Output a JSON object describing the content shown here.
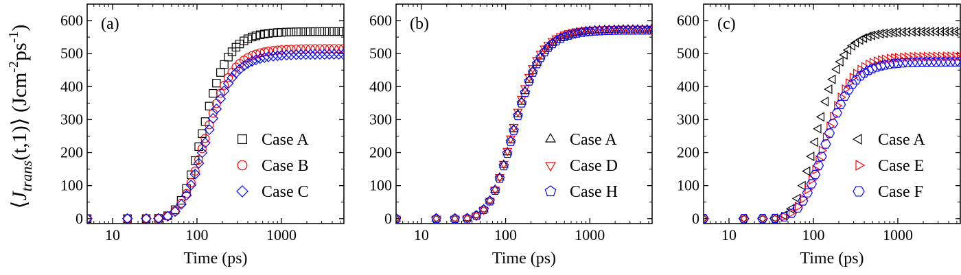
{
  "figure": {
    "ylabel_base": "J",
    "ylabel_sub": "trans",
    "ylabel_args": "(t,1)",
    "ylabel_units_a": "Jcm",
    "ylabel_sup1": "-2",
    "ylabel_units_b": "ps",
    "ylabel_sup2": "-1"
  },
  "chart_data": [
    {
      "type": "scatter",
      "panel": "(a)",
      "xlabel": "Time (ps)",
      "xscale": "log",
      "xlim": [
        5,
        5500
      ],
      "ylim": [
        -15,
        650
      ],
      "xticks": [
        10,
        100,
        1000
      ],
      "xtick_labels": [
        "10",
        "100",
        "1000"
      ],
      "yticks": [
        0,
        100,
        200,
        300,
        400,
        500,
        600
      ],
      "grid": false,
      "legend_position": "lower-right",
      "series": [
        {
          "name": "Case A",
          "marker": "square",
          "color": "#000000",
          "plateau": 567,
          "rise": 92,
          "steep": 2.3
        },
        {
          "name": "Case B",
          "marker": "circle",
          "color": "#ff0000",
          "plateau": 515,
          "rise": 100,
          "steep": 2.2
        },
        {
          "name": "Case C",
          "marker": "diamond",
          "color": "#0000ff",
          "plateau": 498,
          "rise": 102,
          "steep": 2.2
        }
      ]
    },
    {
      "type": "scatter",
      "panel": "(b)",
      "xlabel": "Time (ps)",
      "xscale": "log",
      "xlim": [
        5,
        5500
      ],
      "ylim": [
        -15,
        650
      ],
      "xticks": [
        10,
        100,
        1000
      ],
      "xtick_labels": [
        "10",
        "100",
        "1000"
      ],
      "yticks": [
        0,
        100,
        200,
        300,
        400,
        500,
        600
      ],
      "grid": false,
      "legend_position": "lower-right",
      "series": [
        {
          "name": "Case A",
          "marker": "triangle-up",
          "color": "#000000",
          "plateau": 573,
          "rise": 100,
          "steep": 2.15
        },
        {
          "name": "Case D",
          "marker": "triangle-down",
          "color": "#ff0000",
          "plateau": 576,
          "rise": 98,
          "steep": 2.2
        },
        {
          "name": "Case H",
          "marker": "pentagon",
          "color": "#0000ff",
          "plateau": 571,
          "rise": 101,
          "steep": 2.15
        }
      ]
    },
    {
      "type": "scatter",
      "panel": "(c)",
      "xlabel": "Time (ps)",
      "xscale": "log",
      "xlim": [
        5,
        5500
      ],
      "ylim": [
        -15,
        650
      ],
      "xticks": [
        10,
        100,
        1000
      ],
      "xtick_labels": [
        "10",
        "100",
        "1000"
      ],
      "yticks": [
        0,
        100,
        200,
        300,
        400,
        500,
        600
      ],
      "grid": false,
      "legend_position": "lower-right",
      "series": [
        {
          "name": "Case A",
          "marker": "triangle-left",
          "color": "#000000",
          "plateau": 567,
          "rise": 88,
          "steep": 2.3
        },
        {
          "name": "Case E",
          "marker": "triangle-right",
          "color": "#ff0000",
          "plateau": 492,
          "rise": 110,
          "steep": 2.2
        },
        {
          "name": "Case F",
          "marker": "hexagon",
          "color": "#0000ff",
          "plateau": 475,
          "rise": 115,
          "steep": 2.2
        }
      ]
    }
  ]
}
